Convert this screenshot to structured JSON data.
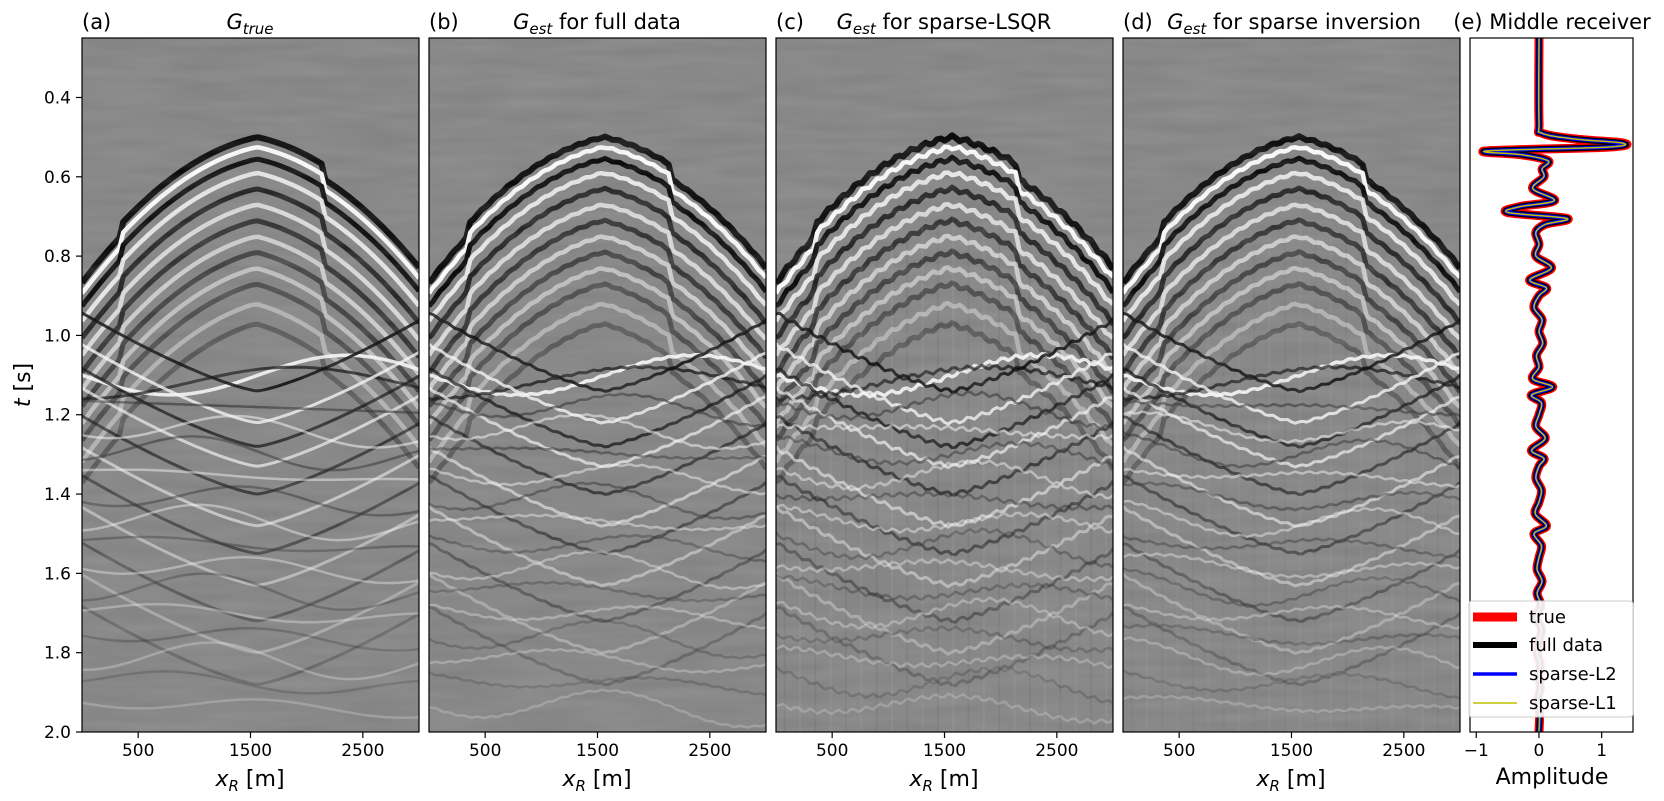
{
  "chart_data": [
    {
      "type": "heatmap",
      "panel": "(a)",
      "title_main": "G",
      "title_sub": "true",
      "title_rest": "",
      "xlabel_main": "x",
      "xlabel_sub": "R",
      "xlabel_rest": " [m]",
      "ylabel_main": "t",
      "ylabel_rest": " [s]",
      "x_ticks": [
        500,
        1500,
        2500
      ],
      "y_ticks": [
        "0.4",
        "0.6",
        "0.8",
        "1.0",
        "1.2",
        "1.4",
        "1.6",
        "1.8",
        "2.0"
      ],
      "xlim": [
        0,
        3000
      ],
      "ylim": [
        2.0,
        0.25
      ],
      "colormap": "gray",
      "background": "#808080"
    },
    {
      "type": "heatmap",
      "panel": "(b)",
      "title_main": "G",
      "title_sub": "est",
      "title_rest": " for full data",
      "xlabel_main": "x",
      "xlabel_sub": "R",
      "xlabel_rest": " [m]",
      "x_ticks": [
        500,
        1500,
        2500
      ],
      "xlim": [
        0,
        3000
      ],
      "ylim": [
        2.0,
        0.25
      ],
      "colormap": "gray"
    },
    {
      "type": "heatmap",
      "panel": "(c)",
      "title_main": "G",
      "title_sub": "est",
      "title_rest": " for sparse-LSQR",
      "xlabel_main": "x",
      "xlabel_sub": "R",
      "xlabel_rest": " [m]",
      "x_ticks": [
        500,
        1500,
        2500
      ],
      "xlim": [
        0,
        3000
      ],
      "ylim": [
        2.0,
        0.25
      ],
      "colormap": "gray"
    },
    {
      "type": "heatmap",
      "panel": "(d)",
      "title_main": "G",
      "title_sub": "est",
      "title_rest": " for sparse inversion",
      "xlabel_main": "x",
      "xlabel_sub": "R",
      "xlabel_rest": " [m]",
      "x_ticks": [
        500,
        1500,
        2500
      ],
      "xlim": [
        0,
        3000
      ],
      "ylim": [
        2.0,
        0.25
      ],
      "colormap": "gray"
    },
    {
      "type": "line",
      "panel": "(e)",
      "title": "Middle receiver",
      "xlabel": "Amplitude",
      "x_ticks": [
        "−1",
        "0",
        "1"
      ],
      "xlim": [
        -1.1,
        1.5
      ],
      "ylim": [
        2.0,
        0.25
      ],
      "legend_position": "lower-right",
      "series": [
        {
          "name": "true",
          "color": "#ff0000"
        },
        {
          "name": "full data",
          "color": "#000000"
        },
        {
          "name": "sparse-L2",
          "color": "#0000ff"
        },
        {
          "name": "sparse-L1",
          "color": "#bfbf00"
        }
      ],
      "trace": {
        "t": [
          0.25,
          0.46,
          0.49,
          0.505,
          0.515,
          0.525,
          0.535,
          0.545,
          0.56,
          0.58,
          0.6,
          0.63,
          0.66,
          0.675,
          0.69,
          0.705,
          0.72,
          0.74,
          0.77,
          0.8,
          0.83,
          0.86,
          0.88,
          0.9,
          0.93,
          0.96,
          0.99,
          1.02,
          1.05,
          1.08,
          1.11,
          1.13,
          1.15,
          1.17,
          1.2,
          1.23,
          1.26,
          1.29,
          1.31,
          1.33,
          1.36,
          1.39,
          1.42,
          1.45,
          1.48,
          1.5,
          1.53,
          1.56,
          1.59,
          1.62,
          1.65,
          1.68,
          1.71,
          1.74,
          1.77,
          1.8,
          1.83,
          1.86,
          1.89,
          1.92,
          1.95,
          2.0
        ],
        "amp": [
          0.0,
          0.0,
          0.05,
          0.6,
          1.35,
          1.1,
          -0.85,
          -0.25,
          0.15,
          0.05,
          0.08,
          -0.1,
          0.25,
          -0.3,
          -0.5,
          0.45,
          0.1,
          -0.05,
          0.0,
          -0.05,
          0.2,
          -0.15,
          0.12,
          0.0,
          -0.08,
          0.05,
          0.0,
          0.06,
          -0.04,
          0.0,
          -0.1,
          0.22,
          -0.12,
          0.04,
          0.0,
          -0.05,
          0.1,
          -0.12,
          0.08,
          0.0,
          -0.05,
          0.04,
          0.0,
          -0.06,
          0.12,
          -0.08,
          0.04,
          0.0,
          -0.03,
          0.05,
          -0.03,
          0.03,
          -0.05,
          0.04,
          0.0,
          -0.03,
          0.02,
          0.0,
          0.02,
          -0.02,
          0.01,
          0.0
        ]
      }
    }
  ]
}
